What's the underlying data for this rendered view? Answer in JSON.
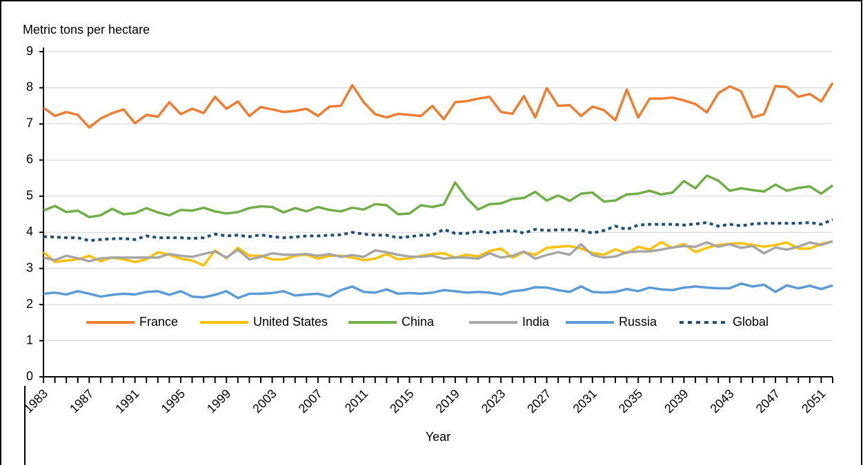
{
  "chart_data": {
    "type": "line",
    "y_label": "Metric tons per hectare",
    "x_label": "Year",
    "x": [
      1983,
      1984,
      1985,
      1986,
      1987,
      1988,
      1989,
      1990,
      1991,
      1992,
      1993,
      1994,
      1995,
      1996,
      1997,
      1998,
      1999,
      2000,
      2001,
      2002,
      2003,
      2004,
      2005,
      2006,
      2007,
      2008,
      2009,
      2010,
      2011,
      2012,
      2013,
      2014,
      2015,
      2016,
      2017,
      2018,
      2019,
      2020,
      2021,
      2022,
      2023,
      2024,
      2025,
      2026,
      2027,
      2028,
      2029,
      2030,
      2031,
      2032,
      2033,
      2034,
      2035,
      2036,
      2037,
      2038,
      2039,
      2040,
      2041,
      2042,
      2043,
      2044,
      2045,
      2046,
      2047,
      2048,
      2049,
      2050,
      2051,
      2052
    ],
    "xlim": [
      1983,
      2052
    ],
    "xticks": [
      1983,
      1987,
      1991,
      1995,
      1999,
      2003,
      2007,
      2011,
      2015,
      2019,
      2023,
      2027,
      2031,
      2035,
      2039,
      2043,
      2047,
      2051
    ],
    "ylim": [
      0,
      9
    ],
    "yticks": [
      0,
      1,
      2,
      3,
      4,
      5,
      6,
      7,
      8,
      9
    ],
    "grid": true,
    "series": [
      {
        "name": "France",
        "color": "#ed7d31",
        "values": [
          7.45,
          7.22,
          7.33,
          7.25,
          6.9,
          7.15,
          7.3,
          7.4,
          7.02,
          7.25,
          7.2,
          7.6,
          7.27,
          7.42,
          7.3,
          7.75,
          7.42,
          7.62,
          7.22,
          7.47,
          7.4,
          7.33,
          7.36,
          7.42,
          7.22,
          7.48,
          7.5,
          8.07,
          7.6,
          7.27,
          7.18,
          7.28,
          7.25,
          7.22,
          7.5,
          7.13,
          7.6,
          7.63,
          7.7,
          7.75,
          7.33,
          7.28,
          7.77,
          7.18,
          7.99,
          7.5,
          7.52,
          7.22,
          7.48,
          7.38,
          7.1,
          7.95,
          7.18,
          7.7,
          7.7,
          7.73,
          7.65,
          7.55,
          7.32,
          7.85,
          8.04,
          7.9,
          7.18,
          7.27,
          8.05,
          8.02,
          7.75,
          7.83,
          7.62,
          8.14
        ]
      },
      {
        "name": "United States",
        "color": "#ffc000",
        "values": [
          3.45,
          3.18,
          3.22,
          3.25,
          3.35,
          3.2,
          3.3,
          3.25,
          3.18,
          3.25,
          3.45,
          3.38,
          3.27,
          3.22,
          3.08,
          3.5,
          3.28,
          3.57,
          3.35,
          3.35,
          3.25,
          3.25,
          3.35,
          3.38,
          3.27,
          3.35,
          3.35,
          3.3,
          3.23,
          3.27,
          3.4,
          3.25,
          3.28,
          3.35,
          3.4,
          3.42,
          3.3,
          3.38,
          3.33,
          3.48,
          3.55,
          3.3,
          3.45,
          3.38,
          3.57,
          3.6,
          3.62,
          3.55,
          3.43,
          3.38,
          3.53,
          3.42,
          3.6,
          3.52,
          3.73,
          3.57,
          3.68,
          3.45,
          3.57,
          3.65,
          3.68,
          3.7,
          3.65,
          3.6,
          3.65,
          3.72,
          3.55,
          3.55,
          3.68,
          3.75
        ]
      },
      {
        "name": "China",
        "color": "#70ad47",
        "values": [
          4.6,
          4.73,
          4.56,
          4.6,
          4.42,
          4.47,
          4.65,
          4.5,
          4.53,
          4.67,
          4.55,
          4.47,
          4.62,
          4.6,
          4.68,
          4.58,
          4.52,
          4.56,
          4.67,
          4.72,
          4.7,
          4.55,
          4.67,
          4.58,
          4.7,
          4.62,
          4.58,
          4.68,
          4.63,
          4.78,
          4.75,
          4.5,
          4.52,
          4.75,
          4.7,
          4.77,
          5.38,
          4.95,
          4.63,
          4.78,
          4.8,
          4.92,
          4.95,
          5.12,
          4.88,
          5.02,
          4.87,
          5.07,
          5.1,
          4.85,
          4.88,
          5.05,
          5.07,
          5.15,
          5.05,
          5.1,
          5.42,
          5.22,
          5.57,
          5.43,
          5.15,
          5.22,
          5.17,
          5.13,
          5.32,
          5.15,
          5.23,
          5.27,
          5.07,
          5.3
        ]
      },
      {
        "name": "India",
        "color": "#a5a5a5",
        "values": [
          3.3,
          3.23,
          3.35,
          3.28,
          3.2,
          3.28,
          3.3,
          3.3,
          3.3,
          3.3,
          3.3,
          3.4,
          3.35,
          3.32,
          3.4,
          3.47,
          3.3,
          3.52,
          3.25,
          3.32,
          3.42,
          3.38,
          3.38,
          3.4,
          3.35,
          3.4,
          3.32,
          3.37,
          3.32,
          3.5,
          3.45,
          3.38,
          3.33,
          3.32,
          3.35,
          3.27,
          3.3,
          3.3,
          3.27,
          3.42,
          3.3,
          3.35,
          3.47,
          3.27,
          3.37,
          3.45,
          3.38,
          3.67,
          3.37,
          3.3,
          3.33,
          3.45,
          3.47,
          3.47,
          3.52,
          3.58,
          3.62,
          3.6,
          3.72,
          3.6,
          3.67,
          3.57,
          3.62,
          3.42,
          3.58,
          3.52,
          3.6,
          3.72,
          3.65,
          3.75
        ]
      },
      {
        "name": "Russia",
        "color": "#5b9bd5",
        "values": [
          2.3,
          2.33,
          2.28,
          2.37,
          2.3,
          2.22,
          2.27,
          2.3,
          2.28,
          2.35,
          2.37,
          2.27,
          2.37,
          2.22,
          2.2,
          2.27,
          2.37,
          2.18,
          2.3,
          2.3,
          2.32,
          2.37,
          2.25,
          2.28,
          2.3,
          2.22,
          2.4,
          2.5,
          2.35,
          2.33,
          2.42,
          2.3,
          2.32,
          2.3,
          2.33,
          2.4,
          2.37,
          2.33,
          2.35,
          2.33,
          2.28,
          2.37,
          2.4,
          2.48,
          2.47,
          2.4,
          2.35,
          2.5,
          2.35,
          2.33,
          2.35,
          2.43,
          2.37,
          2.47,
          2.42,
          2.4,
          2.47,
          2.5,
          2.47,
          2.45,
          2.45,
          2.58,
          2.5,
          2.55,
          2.35,
          2.53,
          2.45,
          2.52,
          2.43,
          2.53
        ]
      },
      {
        "name": "Global",
        "color": "#1f4e79",
        "style": "dotted",
        "values": [
          3.88,
          3.87,
          3.85,
          3.85,
          3.77,
          3.8,
          3.82,
          3.83,
          3.8,
          3.9,
          3.85,
          3.85,
          3.85,
          3.83,
          3.85,
          3.95,
          3.9,
          3.92,
          3.88,
          3.93,
          3.88,
          3.85,
          3.87,
          3.9,
          3.9,
          3.92,
          3.93,
          4.0,
          3.95,
          3.92,
          3.92,
          3.85,
          3.88,
          3.92,
          3.92,
          4.08,
          3.97,
          3.97,
          4.03,
          3.98,
          4.03,
          4.05,
          3.98,
          4.08,
          4.05,
          4.07,
          4.07,
          4.05,
          3.98,
          4.05,
          4.17,
          4.08,
          4.2,
          4.22,
          4.22,
          4.22,
          4.2,
          4.23,
          4.27,
          4.17,
          4.22,
          4.18,
          4.23,
          4.25,
          4.25,
          4.25,
          4.25,
          4.27,
          4.22,
          4.35
        ]
      }
    ]
  }
}
